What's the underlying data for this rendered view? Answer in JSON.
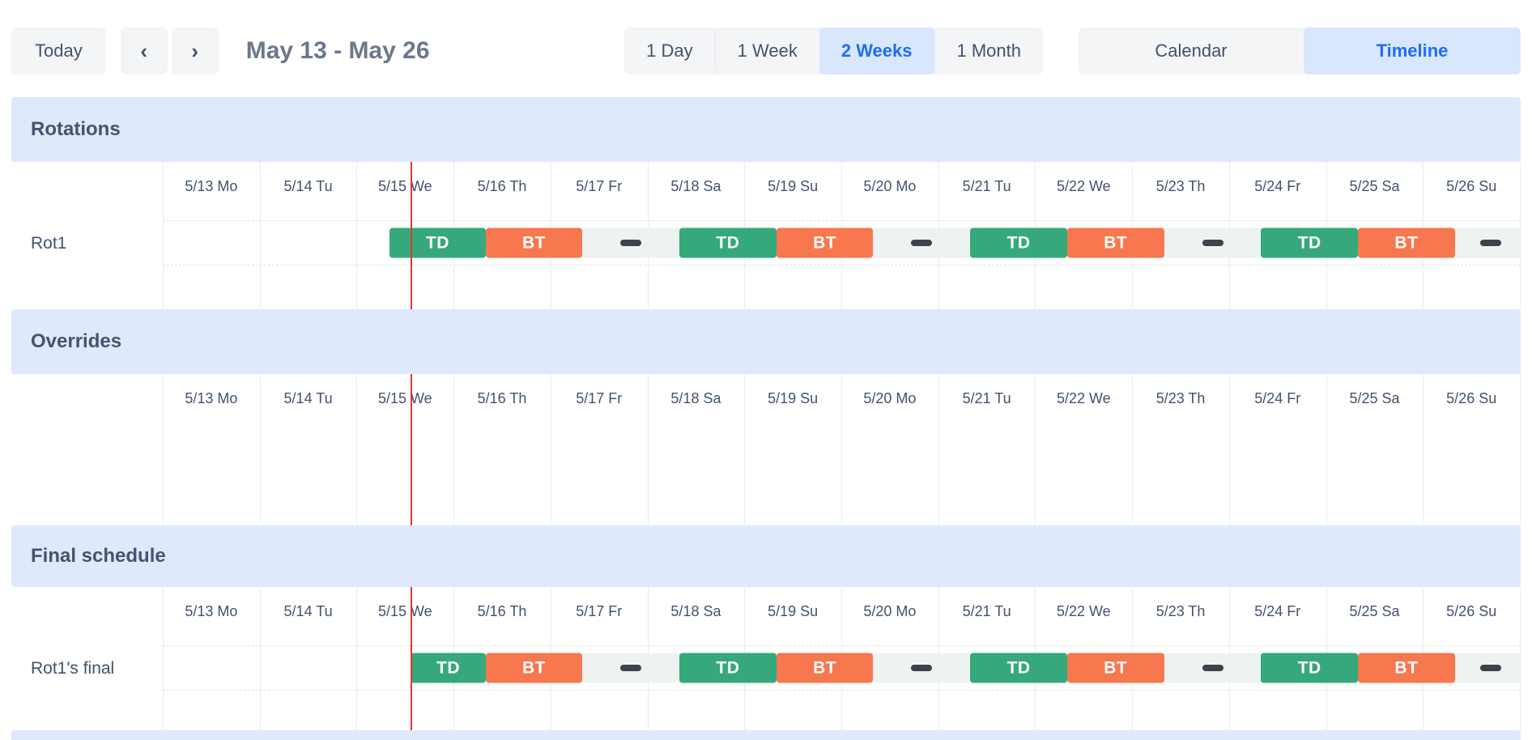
{
  "toolbar": {
    "today": "Today",
    "prev": "‹",
    "next": "›",
    "range": "May 13 - May 26",
    "zoom": [
      {
        "label": "1 Day",
        "active": false
      },
      {
        "label": "1 Week",
        "active": false
      },
      {
        "label": "2 Weeks",
        "active": true
      },
      {
        "label": "1 Month",
        "active": false
      }
    ],
    "views": [
      {
        "label": "Calendar",
        "active": false
      },
      {
        "label": "Timeline",
        "active": true
      }
    ]
  },
  "timeline": {
    "days": [
      "5/13 Mo",
      "5/14 Tu",
      "5/15 We",
      "5/16 Th",
      "5/17 Fr",
      "5/18 Sa",
      "5/19 Su",
      "5/20 Mo",
      "5/21 Tu",
      "5/22 We",
      "5/23 Th",
      "5/24 Fr",
      "5/25 Sa",
      "5/26 Su"
    ],
    "total_days": 14,
    "now_day": 2.56
  },
  "sections": [
    {
      "id": "rotations",
      "title": "Rotations",
      "rows": [
        {
          "label": "Rot1",
          "track_start": 2.34,
          "bars": [
            {
              "type": "shift",
              "label": "TD",
              "start": 2.34,
              "end": 3.33,
              "color_key": "shift_green"
            },
            {
              "type": "shift",
              "label": "BT",
              "start": 3.33,
              "end": 4.33,
              "color_key": "shift_orange"
            },
            {
              "type": "gap",
              "center": 4.83
            },
            {
              "type": "shift",
              "label": "TD",
              "start": 5.33,
              "end": 6.33,
              "color_key": "shift_green"
            },
            {
              "type": "shift",
              "label": "BT",
              "start": 6.33,
              "end": 7.33,
              "color_key": "shift_orange"
            },
            {
              "type": "gap",
              "center": 7.83
            },
            {
              "type": "shift",
              "label": "TD",
              "start": 8.33,
              "end": 9.33,
              "color_key": "shift_green"
            },
            {
              "type": "shift",
              "label": "BT",
              "start": 9.33,
              "end": 10.33,
              "color_key": "shift_orange"
            },
            {
              "type": "gap",
              "center": 10.83
            },
            {
              "type": "shift",
              "label": "TD",
              "start": 11.33,
              "end": 12.33,
              "color_key": "shift_green"
            },
            {
              "type": "shift",
              "label": "BT",
              "start": 12.33,
              "end": 13.33,
              "color_key": "shift_orange"
            },
            {
              "type": "gap",
              "center": 13.7
            }
          ]
        }
      ]
    },
    {
      "id": "overrides",
      "title": "Overrides",
      "rows": []
    },
    {
      "id": "final",
      "title": "Final schedule",
      "rows": [
        {
          "label": "Rot1's final",
          "track_start": 2.56,
          "bars": [
            {
              "type": "shift",
              "label": "TD",
              "start": 2.56,
              "end": 3.33,
              "color_key": "shift_green"
            },
            {
              "type": "shift",
              "label": "BT",
              "start": 3.33,
              "end": 4.33,
              "color_key": "shift_orange"
            },
            {
              "type": "gap",
              "center": 4.83
            },
            {
              "type": "shift",
              "label": "TD",
              "start": 5.33,
              "end": 6.33,
              "color_key": "shift_green"
            },
            {
              "type": "shift",
              "label": "BT",
              "start": 6.33,
              "end": 7.33,
              "color_key": "shift_orange"
            },
            {
              "type": "gap",
              "center": 7.83
            },
            {
              "type": "shift",
              "label": "TD",
              "start": 8.33,
              "end": 9.33,
              "color_key": "shift_green"
            },
            {
              "type": "shift",
              "label": "BT",
              "start": 9.33,
              "end": 10.33,
              "color_key": "shift_orange"
            },
            {
              "type": "gap",
              "center": 10.83
            },
            {
              "type": "shift",
              "label": "TD",
              "start": 11.33,
              "end": 12.33,
              "color_key": "shift_green"
            },
            {
              "type": "shift",
              "label": "BT",
              "start": 12.33,
              "end": 13.33,
              "color_key": "shift_orange"
            },
            {
              "type": "gap",
              "center": 13.7
            }
          ]
        }
      ]
    }
  ],
  "colors": {
    "shift_green": "#35a97b",
    "shift_orange": "#f7774f",
    "gap_dash": "#3d434d",
    "now_line": "#e0372e",
    "band_blue": "#dfe9fb",
    "track": "#edf3f0",
    "active_blue_bg": "#d9e7fd",
    "active_blue_text": "#1c6ef2",
    "button_gray": "#f4f5f7",
    "text_dark": "#42526e"
  }
}
